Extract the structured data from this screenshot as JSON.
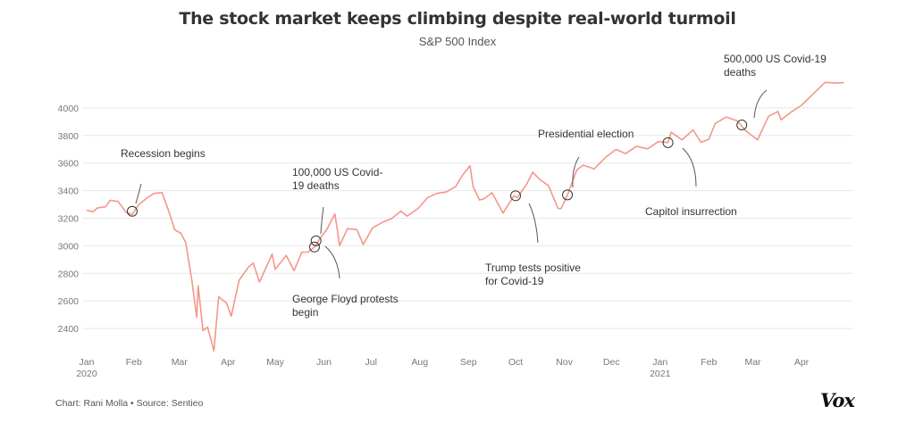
{
  "header": {
    "title": "The stock market keeps climbing despite real-world turmoil",
    "subtitle": "S&P 500 Index"
  },
  "footer": {
    "credit": "Chart: Rani Molla • Source: Sentieo",
    "logo": "Vox"
  },
  "colors": {
    "line": "#f4978a",
    "grid": "#e8e8e8",
    "text": "#333333"
  },
  "chart_data": {
    "type": "line",
    "title": "The stock market keeps climbing despite real-world turmoil",
    "subtitle": "S&P 500 Index",
    "ylim": [
      2200,
      4200
    ],
    "xlim": [
      "2020-01-02",
      "2021-04-30"
    ],
    "y_ticks": [
      "2400",
      "2600",
      "2800",
      "3000",
      "3200",
      "3400",
      "3600",
      "3800",
      "4000"
    ],
    "x_ticks": [
      {
        "date": "2020-01-01",
        "label": "Jan",
        "sublabel": "2020"
      },
      {
        "date": "2020-02-01",
        "label": "Feb"
      },
      {
        "date": "2020-03-01",
        "label": "Mar"
      },
      {
        "date": "2020-04-01",
        "label": "Apr"
      },
      {
        "date": "2020-05-01",
        "label": "May"
      },
      {
        "date": "2020-06-01",
        "label": "Jun"
      },
      {
        "date": "2020-07-01",
        "label": "Jul"
      },
      {
        "date": "2020-08-01",
        "label": "Aug"
      },
      {
        "date": "2020-09-01",
        "label": "Sep"
      },
      {
        "date": "2020-10-01",
        "label": "Oct"
      },
      {
        "date": "2020-11-01",
        "label": "Nov"
      },
      {
        "date": "2020-12-01",
        "label": "Dec"
      },
      {
        "date": "2021-01-01",
        "label": "Jan",
        "sublabel": "2021"
      },
      {
        "date": "2021-02-01",
        "label": "Feb"
      },
      {
        "date": "2021-03-01",
        "label": "Mar"
      },
      {
        "date": "2021-04-01",
        "label": "Apr"
      }
    ],
    "grid": "horizontal",
    "series": [
      {
        "x": [
          "2020-01-02",
          "2020-01-06",
          "2020-01-09",
          "2020-01-14",
          "2020-01-17",
          "2020-01-22",
          "2020-01-27",
          "2020-01-31",
          "2020-02-04",
          "2020-02-10",
          "2020-02-14",
          "2020-02-19",
          "2020-02-24",
          "2020-02-27",
          "2020-03-02",
          "2020-03-05",
          "2020-03-09",
          "2020-03-12",
          "2020-03-13",
          "2020-03-16",
          "2020-03-19",
          "2020-03-23",
          "2020-03-26",
          "2020-03-31",
          "2020-04-03",
          "2020-04-08",
          "2020-04-14",
          "2020-04-17",
          "2020-04-21",
          "2020-04-29",
          "2020-05-01",
          "2020-05-08",
          "2020-05-13",
          "2020-05-18",
          "2020-05-22",
          "2020-05-26",
          "2020-05-29",
          "2020-06-03",
          "2020-06-08",
          "2020-06-11",
          "2020-06-16",
          "2020-06-22",
          "2020-06-26",
          "2020-07-02",
          "2020-07-08",
          "2020-07-14",
          "2020-07-20",
          "2020-07-24",
          "2020-07-31",
          "2020-08-06",
          "2020-08-12",
          "2020-08-18",
          "2020-08-24",
          "2020-08-28",
          "2020-09-02",
          "2020-09-04",
          "2020-09-08",
          "2020-09-11",
          "2020-09-16",
          "2020-09-23",
          "2020-09-30",
          "2020-10-02",
          "2020-10-08",
          "2020-10-12",
          "2020-10-16",
          "2020-10-22",
          "2020-10-28",
          "2020-10-30",
          "2020-11-03",
          "2020-11-09",
          "2020-11-13",
          "2020-11-20",
          "2020-11-27",
          "2020-12-04",
          "2020-12-10",
          "2020-12-17",
          "2020-12-24",
          "2020-12-31",
          "2021-01-06",
          "2021-01-08",
          "2021-01-15",
          "2021-01-22",
          "2021-01-27",
          "2021-02-01",
          "2021-02-05",
          "2021-02-12",
          "2021-02-19",
          "2021-02-25",
          "2021-03-04",
          "2021-03-11",
          "2021-03-17",
          "2021-03-19",
          "2021-03-26",
          "2021-04-01",
          "2021-04-08",
          "2021-04-16",
          "2021-04-23",
          "2021-04-28"
        ],
        "y": [
          3258,
          3246,
          3275,
          3283,
          3330,
          3321,
          3244,
          3226,
          3297,
          3352,
          3380,
          3386,
          3226,
          3116,
          3090,
          3023,
          2746,
          2481,
          2711,
          2386,
          2409,
          2237,
          2630,
          2585,
          2489,
          2750,
          2846,
          2875,
          2737,
          2939,
          2830,
          2930,
          2820,
          2954,
          2955,
          2991,
          3044,
          3122,
          3232,
          3002,
          3124,
          3117,
          3009,
          3130,
          3169,
          3197,
          3251,
          3215,
          3271,
          3349,
          3380,
          3390,
          3431,
          3508,
          3580,
          3427,
          3332,
          3341,
          3385,
          3237,
          3363,
          3348,
          3446,
          3534,
          3484,
          3435,
          3271,
          3270,
          3369,
          3550,
          3585,
          3557,
          3638,
          3699,
          3668,
          3722,
          3703,
          3756,
          3748,
          3824,
          3768,
          3841,
          3750,
          3773,
          3886,
          3934,
          3906,
          3829,
          3768,
          3939,
          3974,
          3913,
          3975,
          4019,
          4097,
          4185,
          4180,
          4183
        ]
      }
    ],
    "annotations": [
      {
        "date": "2020-01-31",
        "value": 3250,
        "text": [
          "Recession begins"
        ]
      },
      {
        "date": "2020-05-27",
        "value": 3036,
        "text": [
          "100,000 US Covid-",
          "19 deaths"
        ]
      },
      {
        "date": "2020-05-26",
        "value": 2991,
        "text": [
          "George Floyd protests",
          "begin"
        ]
      },
      {
        "date": "2020-10-01",
        "value": 3363,
        "text": [
          "Trump tests positive",
          "for Covid-19"
        ]
      },
      {
        "date": "2020-11-03",
        "value": 3369,
        "text": [
          "Presidential election"
        ]
      },
      {
        "date": "2021-01-06",
        "value": 3748,
        "text": [
          "Capitol insurrection"
        ]
      },
      {
        "date": "2021-02-22",
        "value": 3876,
        "text": [
          "500,000 US Covid-19",
          "deaths"
        ]
      }
    ]
  }
}
